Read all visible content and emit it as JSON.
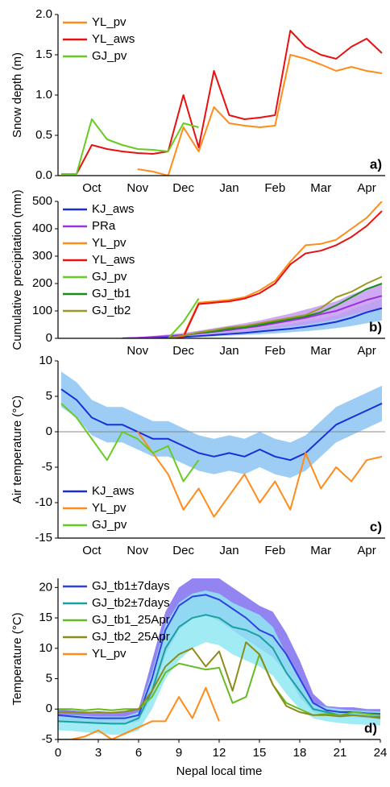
{
  "chart_data": [
    {
      "type": "line",
      "y_label": "Snow depth (m)",
      "label": "a)",
      "legend": "upper left",
      "categories": [
        null,
        null,
        "Oct",
        null,
        null,
        "Nov",
        null,
        null,
        "Dec",
        null,
        null,
        "Jan",
        null,
        null,
        "Feb",
        null,
        null,
        "Mar",
        null,
        null,
        "Apr",
        null
      ],
      "ylim": [
        0,
        2
      ],
      "yticks": [
        {
          "value": 0,
          "label": "0.0"
        },
        {
          "value": 0.5,
          "label": "0.5"
        },
        {
          "value": 1,
          "label": "1.0"
        },
        {
          "value": 1.5,
          "label": "1.5"
        },
        {
          "value": 2,
          "label": "2.0"
        }
      ],
      "series": [
        {
          "name": "YL_pv",
          "color": "#ff8c1a",
          "values": [
            null,
            null,
            null,
            null,
            null,
            0.08,
            0.05,
            0.0,
            0.6,
            0.3,
            0.85,
            0.65,
            0.62,
            0.6,
            0.62,
            1.5,
            1.45,
            1.38,
            1.3,
            1.35,
            1.3,
            1.27
          ]
        },
        {
          "name": "YL_aws",
          "color": "#e81010",
          "values": [
            null,
            0.02,
            0.38,
            0.33,
            0.3,
            0.28,
            0.27,
            0.3,
            1.0,
            0.35,
            1.3,
            0.75,
            0.7,
            0.72,
            0.75,
            1.8,
            1.6,
            1.5,
            1.45,
            1.6,
            1.7,
            1.52
          ]
        },
        {
          "name": "GJ_pv",
          "color": "#66cc22",
          "values": [
            0.02,
            0.02,
            0.7,
            0.45,
            0.38,
            0.33,
            0.32,
            0.3,
            0.65,
            0.6,
            null,
            null,
            null,
            null,
            null,
            null,
            null,
            null,
            null,
            null,
            null,
            null
          ]
        }
      ]
    },
    {
      "type": "line",
      "y_label": "Cumulative precipitation (mm)",
      "label": "b)",
      "legend": "upper left",
      "categories": [
        null,
        null,
        null,
        null,
        null,
        "Nov",
        null,
        null,
        "Dec",
        null,
        null,
        "Jan",
        null,
        null,
        "Feb",
        null,
        null,
        "Mar",
        null,
        null,
        "Apr",
        null
      ],
      "ylim": [
        0,
        500
      ],
      "yticks": [
        0,
        100,
        200,
        300,
        400,
        500
      ],
      "series": [
        {
          "name": "KJ_aws",
          "color": "#1a2ed6",
          "band_color": "#8cc4f2",
          "values": [
            null,
            null,
            null,
            null,
            0,
            1,
            2,
            3,
            5,
            8,
            12,
            16,
            20,
            25,
            30,
            35,
            42,
            50,
            60,
            75,
            95,
            110
          ],
          "lower": [
            null,
            null,
            null,
            null,
            0,
            0,
            1,
            2,
            3,
            5,
            7,
            10,
            12,
            15,
            18,
            22,
            26,
            31,
            37,
            45,
            55,
            65
          ],
          "upper": [
            null,
            null,
            null,
            null,
            0,
            2,
            4,
            6,
            9,
            13,
            18,
            24,
            30,
            37,
            45,
            52,
            62,
            72,
            84,
            105,
            125,
            145
          ]
        },
        {
          "name": "PRa",
          "color": "#9932e0",
          "band_color": "#c79af2",
          "values": [
            null,
            null,
            null,
            null,
            0,
            2,
            5,
            8,
            12,
            18,
            24,
            30,
            38,
            45,
            55,
            65,
            75,
            88,
            100,
            120,
            140,
            155
          ],
          "lower": [
            null,
            null,
            null,
            null,
            0,
            1,
            3,
            5,
            8,
            12,
            15,
            20,
            25,
            30,
            37,
            44,
            50,
            60,
            70,
            85,
            100,
            110
          ],
          "upper": [
            null,
            null,
            null,
            null,
            0,
            4,
            9,
            14,
            20,
            28,
            37,
            46,
            55,
            65,
            78,
            90,
            105,
            120,
            135,
            160,
            180,
            200
          ]
        },
        {
          "name": "YL_pv",
          "color": "#ff8c1a",
          "values": [
            null,
            null,
            null,
            null,
            null,
            null,
            null,
            0,
            10,
            130,
            135,
            140,
            150,
            175,
            210,
            280,
            340,
            345,
            360,
            400,
            440,
            500
          ]
        },
        {
          "name": "YL_aws",
          "color": "#e81010",
          "values": [
            null,
            null,
            null,
            null,
            null,
            null,
            null,
            0,
            5,
            125,
            130,
            135,
            145,
            165,
            200,
            270,
            310,
            320,
            340,
            370,
            410,
            465
          ]
        },
        {
          "name": "GJ_pv",
          "color": "#66cc22",
          "values": [
            null,
            null,
            null,
            null,
            null,
            null,
            null,
            0,
            60,
            145,
            null,
            null,
            null,
            null,
            null,
            null,
            null,
            null,
            null,
            null,
            null,
            null
          ]
        },
        {
          "name": "GJ_tb1",
          "color": "#1a8c1a",
          "values": [
            null,
            null,
            null,
            null,
            null,
            null,
            null,
            0,
            10,
            20,
            25,
            35,
            40,
            50,
            60,
            70,
            80,
            95,
            120,
            150,
            180,
            200
          ]
        },
        {
          "name": "GJ_tb2",
          "color": "#9a9a22",
          "values": [
            null,
            null,
            null,
            null,
            null,
            null,
            null,
            0,
            10,
            22,
            30,
            40,
            45,
            55,
            65,
            75,
            85,
            110,
            150,
            170,
            200,
            225
          ]
        }
      ]
    },
    {
      "type": "line",
      "y_label": "Air temperature (°C)",
      "label": "c)",
      "legend": "lower left",
      "zero_line": true,
      "categories": [
        null,
        null,
        "Oct",
        null,
        null,
        "Nov",
        null,
        null,
        "Dec",
        null,
        null,
        "Jan",
        null,
        null,
        "Feb",
        null,
        null,
        "Mar",
        null,
        null,
        "Apr",
        null
      ],
      "ylim": [
        -15,
        10
      ],
      "yticks": [
        -15,
        -10,
        -5,
        0,
        5,
        10
      ],
      "series": [
        {
          "name": "KJ_aws",
          "color": "#1a2ed6",
          "band_color": "#8cc4f2",
          "values": [
            6,
            4.5,
            2,
            1,
            1,
            0,
            -1,
            -1,
            -2,
            -3,
            -3.5,
            -3,
            -3.5,
            -2.5,
            -3.5,
            -4,
            -3,
            -1,
            1,
            2,
            3,
            4
          ],
          "lower": [
            3.5,
            2,
            -0.5,
            -1.5,
            -1.5,
            -2.5,
            -3.5,
            -3.5,
            -4.5,
            -5.5,
            -6,
            -5.5,
            -6,
            -5,
            -6,
            -6.5,
            -5.5,
            -3.5,
            -1.5,
            -0.5,
            0.5,
            1.5
          ],
          "upper": [
            8.5,
            7,
            4.5,
            3.5,
            3.5,
            2.5,
            1.5,
            1.5,
            0.5,
            -0.5,
            -1,
            -0.5,
            -1,
            0,
            -1,
            -1.5,
            -0.5,
            1.5,
            3.5,
            4.5,
            5.5,
            6.5
          ]
        },
        {
          "name": "YL_pv",
          "color": "#ff8c1a",
          "values": [
            null,
            null,
            null,
            null,
            null,
            0,
            -3,
            -6,
            -11,
            -8,
            -12,
            -9,
            -6,
            -10,
            -7,
            -11,
            -3,
            -8,
            -5,
            -7,
            -4,
            -3.5
          ]
        },
        {
          "name": "GJ_pv",
          "color": "#66cc22",
          "values": [
            4,
            2,
            -1,
            -4,
            0,
            -1,
            -3,
            -2,
            -7,
            -4,
            null,
            null,
            null,
            null,
            null,
            null,
            null,
            null,
            null,
            null,
            null,
            null
          ]
        }
      ]
    },
    {
      "type": "line",
      "y_label": "Temperature (°C)",
      "x_label": "Nepal local time",
      "label": "d)",
      "legend": "upper left",
      "x": [
        0,
        1,
        2,
        3,
        4,
        5,
        6,
        7,
        8,
        9,
        10,
        11,
        12,
        13,
        14,
        15,
        16,
        17,
        18,
        19,
        20,
        21,
        22,
        23,
        24
      ],
      "xlim": [
        0,
        24
      ],
      "xticks": [
        0,
        3,
        6,
        9,
        12,
        15,
        18,
        21,
        24
      ],
      "ylim": [
        -5,
        21.5
      ],
      "yticks": [
        -5,
        0,
        5,
        10,
        15,
        20
      ],
      "series": [
        {
          "name": "GJ_tb1±7days",
          "color": "#3040e0",
          "band_color": "#7f70f0",
          "values": [
            -1,
            -1.2,
            -1.4,
            -1.5,
            -1.5,
            -1.5,
            -1,
            5,
            13,
            17,
            18.5,
            18.8,
            18,
            16.5,
            15,
            13,
            12,
            9,
            5,
            1,
            -0.2,
            -0.5,
            -0.5,
            -0.7,
            -0.8
          ],
          "lower": [
            -2,
            -2.2,
            -2.4,
            -2.5,
            -2.5,
            -2.5,
            -2,
            2,
            9,
            13,
            15,
            15.5,
            14.5,
            13,
            11.5,
            10,
            8.5,
            6,
            2,
            -0.5,
            -1,
            -1.3,
            -1.3,
            -1.5,
            -1.6
          ],
          "upper": [
            0,
            -0.2,
            -0.4,
            -0.5,
            -0.5,
            -0.5,
            0,
            8,
            16,
            20,
            21.5,
            22,
            21.5,
            20,
            18.5,
            17,
            16,
            12.5,
            8,
            2.5,
            0.5,
            0.3,
            0.3,
            0,
            0
          ]
        },
        {
          "name": "GJ_tb2±7days",
          "color": "#1aa0a0",
          "band_color": "#90e8f2",
          "values": [
            -2,
            -2.1,
            -2.2,
            -2.3,
            -2.4,
            -2.4,
            -1.5,
            3,
            10,
            13.5,
            15,
            15.5,
            15,
            13.5,
            13,
            12,
            10,
            6,
            3,
            0,
            -0.5,
            -1,
            -1,
            -1.2,
            -1.3
          ],
          "lower": [
            -3.5,
            -3.6,
            -3.8,
            -4,
            -4.2,
            -4.2,
            -3.5,
            0,
            5,
            8,
            10,
            11,
            10.5,
            9,
            8,
            7,
            5.5,
            2.5,
            0,
            -1.5,
            -2,
            -2.3,
            -2.5,
            -2.6,
            -2.7
          ],
          "upper": [
            -1,
            -1,
            -1.1,
            -1.2,
            -1.2,
            -1.2,
            -0.5,
            6,
            14,
            17.5,
            19,
            19.5,
            19,
            17.5,
            16.5,
            15.5,
            13.5,
            9,
            5,
            1,
            0.3,
            0,
            -0.2,
            -0.3,
            -0.4
          ]
        },
        {
          "name": "GJ_tb1_25Apr",
          "color": "#66bb22",
          "values": [
            0,
            0,
            -0.2,
            0,
            -0.2,
            0,
            0,
            2,
            6,
            7.5,
            7,
            6.5,
            6.8,
            1,
            2,
            9,
            4,
            1,
            0,
            -1,
            -0.8,
            -1,
            -0.5,
            -0.8,
            -1
          ]
        },
        {
          "name": "GJ_tb2_25Apr",
          "color": "#8c8c1a",
          "values": [
            -0.5,
            -0.5,
            -0.6,
            -0.5,
            -0.6,
            -0.4,
            0,
            3,
            7,
            9,
            10,
            7,
            9.5,
            3,
            11,
            9,
            4,
            0.5,
            -0.5,
            -1,
            -1,
            -1.2,
            -1,
            -1.2,
            -1.5
          ]
        },
        {
          "name": "YL_pv",
          "color": "#ff8c1a",
          "values": [
            -5,
            -5,
            -4.5,
            -3.5,
            -5,
            -4,
            -3,
            -2,
            -2,
            2,
            -1.5,
            3.5,
            -2,
            null,
            null,
            null,
            null,
            null,
            null,
            null,
            null,
            null,
            null,
            null,
            null
          ]
        }
      ]
    }
  ]
}
